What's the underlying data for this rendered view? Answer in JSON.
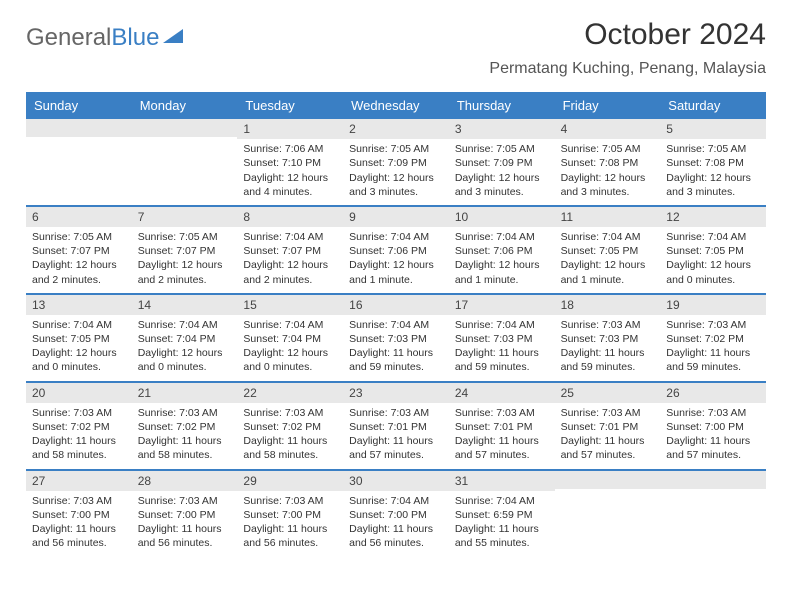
{
  "logo": {
    "text_gray": "General",
    "text_blue": "Blue"
  },
  "title": "October 2024",
  "location": "Permatang Kuching, Penang, Malaysia",
  "colors": {
    "header_bg": "#3a7fc4",
    "header_text": "#ffffff",
    "daynum_bg": "#e8e8e8",
    "border": "#3a7fc4",
    "text": "#333333",
    "logo_gray": "#666666",
    "logo_blue": "#3a7fc4",
    "page_bg": "#ffffff"
  },
  "day_headers": [
    "Sunday",
    "Monday",
    "Tuesday",
    "Wednesday",
    "Thursday",
    "Friday",
    "Saturday"
  ],
  "weeks": [
    [
      {
        "empty": true
      },
      {
        "empty": true
      },
      {
        "day": "1",
        "sunrise": "Sunrise: 7:06 AM",
        "sunset": "Sunset: 7:10 PM",
        "daylight": "Daylight: 12 hours and 4 minutes."
      },
      {
        "day": "2",
        "sunrise": "Sunrise: 7:05 AM",
        "sunset": "Sunset: 7:09 PM",
        "daylight": "Daylight: 12 hours and 3 minutes."
      },
      {
        "day": "3",
        "sunrise": "Sunrise: 7:05 AM",
        "sunset": "Sunset: 7:09 PM",
        "daylight": "Daylight: 12 hours and 3 minutes."
      },
      {
        "day": "4",
        "sunrise": "Sunrise: 7:05 AM",
        "sunset": "Sunset: 7:08 PM",
        "daylight": "Daylight: 12 hours and 3 minutes."
      },
      {
        "day": "5",
        "sunrise": "Sunrise: 7:05 AM",
        "sunset": "Sunset: 7:08 PM",
        "daylight": "Daylight: 12 hours and 3 minutes."
      }
    ],
    [
      {
        "day": "6",
        "sunrise": "Sunrise: 7:05 AM",
        "sunset": "Sunset: 7:07 PM",
        "daylight": "Daylight: 12 hours and 2 minutes."
      },
      {
        "day": "7",
        "sunrise": "Sunrise: 7:05 AM",
        "sunset": "Sunset: 7:07 PM",
        "daylight": "Daylight: 12 hours and 2 minutes."
      },
      {
        "day": "8",
        "sunrise": "Sunrise: 7:04 AM",
        "sunset": "Sunset: 7:07 PM",
        "daylight": "Daylight: 12 hours and 2 minutes."
      },
      {
        "day": "9",
        "sunrise": "Sunrise: 7:04 AM",
        "sunset": "Sunset: 7:06 PM",
        "daylight": "Daylight: 12 hours and 1 minute."
      },
      {
        "day": "10",
        "sunrise": "Sunrise: 7:04 AM",
        "sunset": "Sunset: 7:06 PM",
        "daylight": "Daylight: 12 hours and 1 minute."
      },
      {
        "day": "11",
        "sunrise": "Sunrise: 7:04 AM",
        "sunset": "Sunset: 7:05 PM",
        "daylight": "Daylight: 12 hours and 1 minute."
      },
      {
        "day": "12",
        "sunrise": "Sunrise: 7:04 AM",
        "sunset": "Sunset: 7:05 PM",
        "daylight": "Daylight: 12 hours and 0 minutes."
      }
    ],
    [
      {
        "day": "13",
        "sunrise": "Sunrise: 7:04 AM",
        "sunset": "Sunset: 7:05 PM",
        "daylight": "Daylight: 12 hours and 0 minutes."
      },
      {
        "day": "14",
        "sunrise": "Sunrise: 7:04 AM",
        "sunset": "Sunset: 7:04 PM",
        "daylight": "Daylight: 12 hours and 0 minutes."
      },
      {
        "day": "15",
        "sunrise": "Sunrise: 7:04 AM",
        "sunset": "Sunset: 7:04 PM",
        "daylight": "Daylight: 12 hours and 0 minutes."
      },
      {
        "day": "16",
        "sunrise": "Sunrise: 7:04 AM",
        "sunset": "Sunset: 7:03 PM",
        "daylight": "Daylight: 11 hours and 59 minutes."
      },
      {
        "day": "17",
        "sunrise": "Sunrise: 7:04 AM",
        "sunset": "Sunset: 7:03 PM",
        "daylight": "Daylight: 11 hours and 59 minutes."
      },
      {
        "day": "18",
        "sunrise": "Sunrise: 7:03 AM",
        "sunset": "Sunset: 7:03 PM",
        "daylight": "Daylight: 11 hours and 59 minutes."
      },
      {
        "day": "19",
        "sunrise": "Sunrise: 7:03 AM",
        "sunset": "Sunset: 7:02 PM",
        "daylight": "Daylight: 11 hours and 59 minutes."
      }
    ],
    [
      {
        "day": "20",
        "sunrise": "Sunrise: 7:03 AM",
        "sunset": "Sunset: 7:02 PM",
        "daylight": "Daylight: 11 hours and 58 minutes."
      },
      {
        "day": "21",
        "sunrise": "Sunrise: 7:03 AM",
        "sunset": "Sunset: 7:02 PM",
        "daylight": "Daylight: 11 hours and 58 minutes."
      },
      {
        "day": "22",
        "sunrise": "Sunrise: 7:03 AM",
        "sunset": "Sunset: 7:02 PM",
        "daylight": "Daylight: 11 hours and 58 minutes."
      },
      {
        "day": "23",
        "sunrise": "Sunrise: 7:03 AM",
        "sunset": "Sunset: 7:01 PM",
        "daylight": "Daylight: 11 hours and 57 minutes."
      },
      {
        "day": "24",
        "sunrise": "Sunrise: 7:03 AM",
        "sunset": "Sunset: 7:01 PM",
        "daylight": "Daylight: 11 hours and 57 minutes."
      },
      {
        "day": "25",
        "sunrise": "Sunrise: 7:03 AM",
        "sunset": "Sunset: 7:01 PM",
        "daylight": "Daylight: 11 hours and 57 minutes."
      },
      {
        "day": "26",
        "sunrise": "Sunrise: 7:03 AM",
        "sunset": "Sunset: 7:00 PM",
        "daylight": "Daylight: 11 hours and 57 minutes."
      }
    ],
    [
      {
        "day": "27",
        "sunrise": "Sunrise: 7:03 AM",
        "sunset": "Sunset: 7:00 PM",
        "daylight": "Daylight: 11 hours and 56 minutes."
      },
      {
        "day": "28",
        "sunrise": "Sunrise: 7:03 AM",
        "sunset": "Sunset: 7:00 PM",
        "daylight": "Daylight: 11 hours and 56 minutes."
      },
      {
        "day": "29",
        "sunrise": "Sunrise: 7:03 AM",
        "sunset": "Sunset: 7:00 PM",
        "daylight": "Daylight: 11 hours and 56 minutes."
      },
      {
        "day": "30",
        "sunrise": "Sunrise: 7:04 AM",
        "sunset": "Sunset: 7:00 PM",
        "daylight": "Daylight: 11 hours and 56 minutes."
      },
      {
        "day": "31",
        "sunrise": "Sunrise: 7:04 AM",
        "sunset": "Sunset: 6:59 PM",
        "daylight": "Daylight: 11 hours and 55 minutes."
      },
      {
        "empty": true
      },
      {
        "empty": true
      }
    ]
  ]
}
